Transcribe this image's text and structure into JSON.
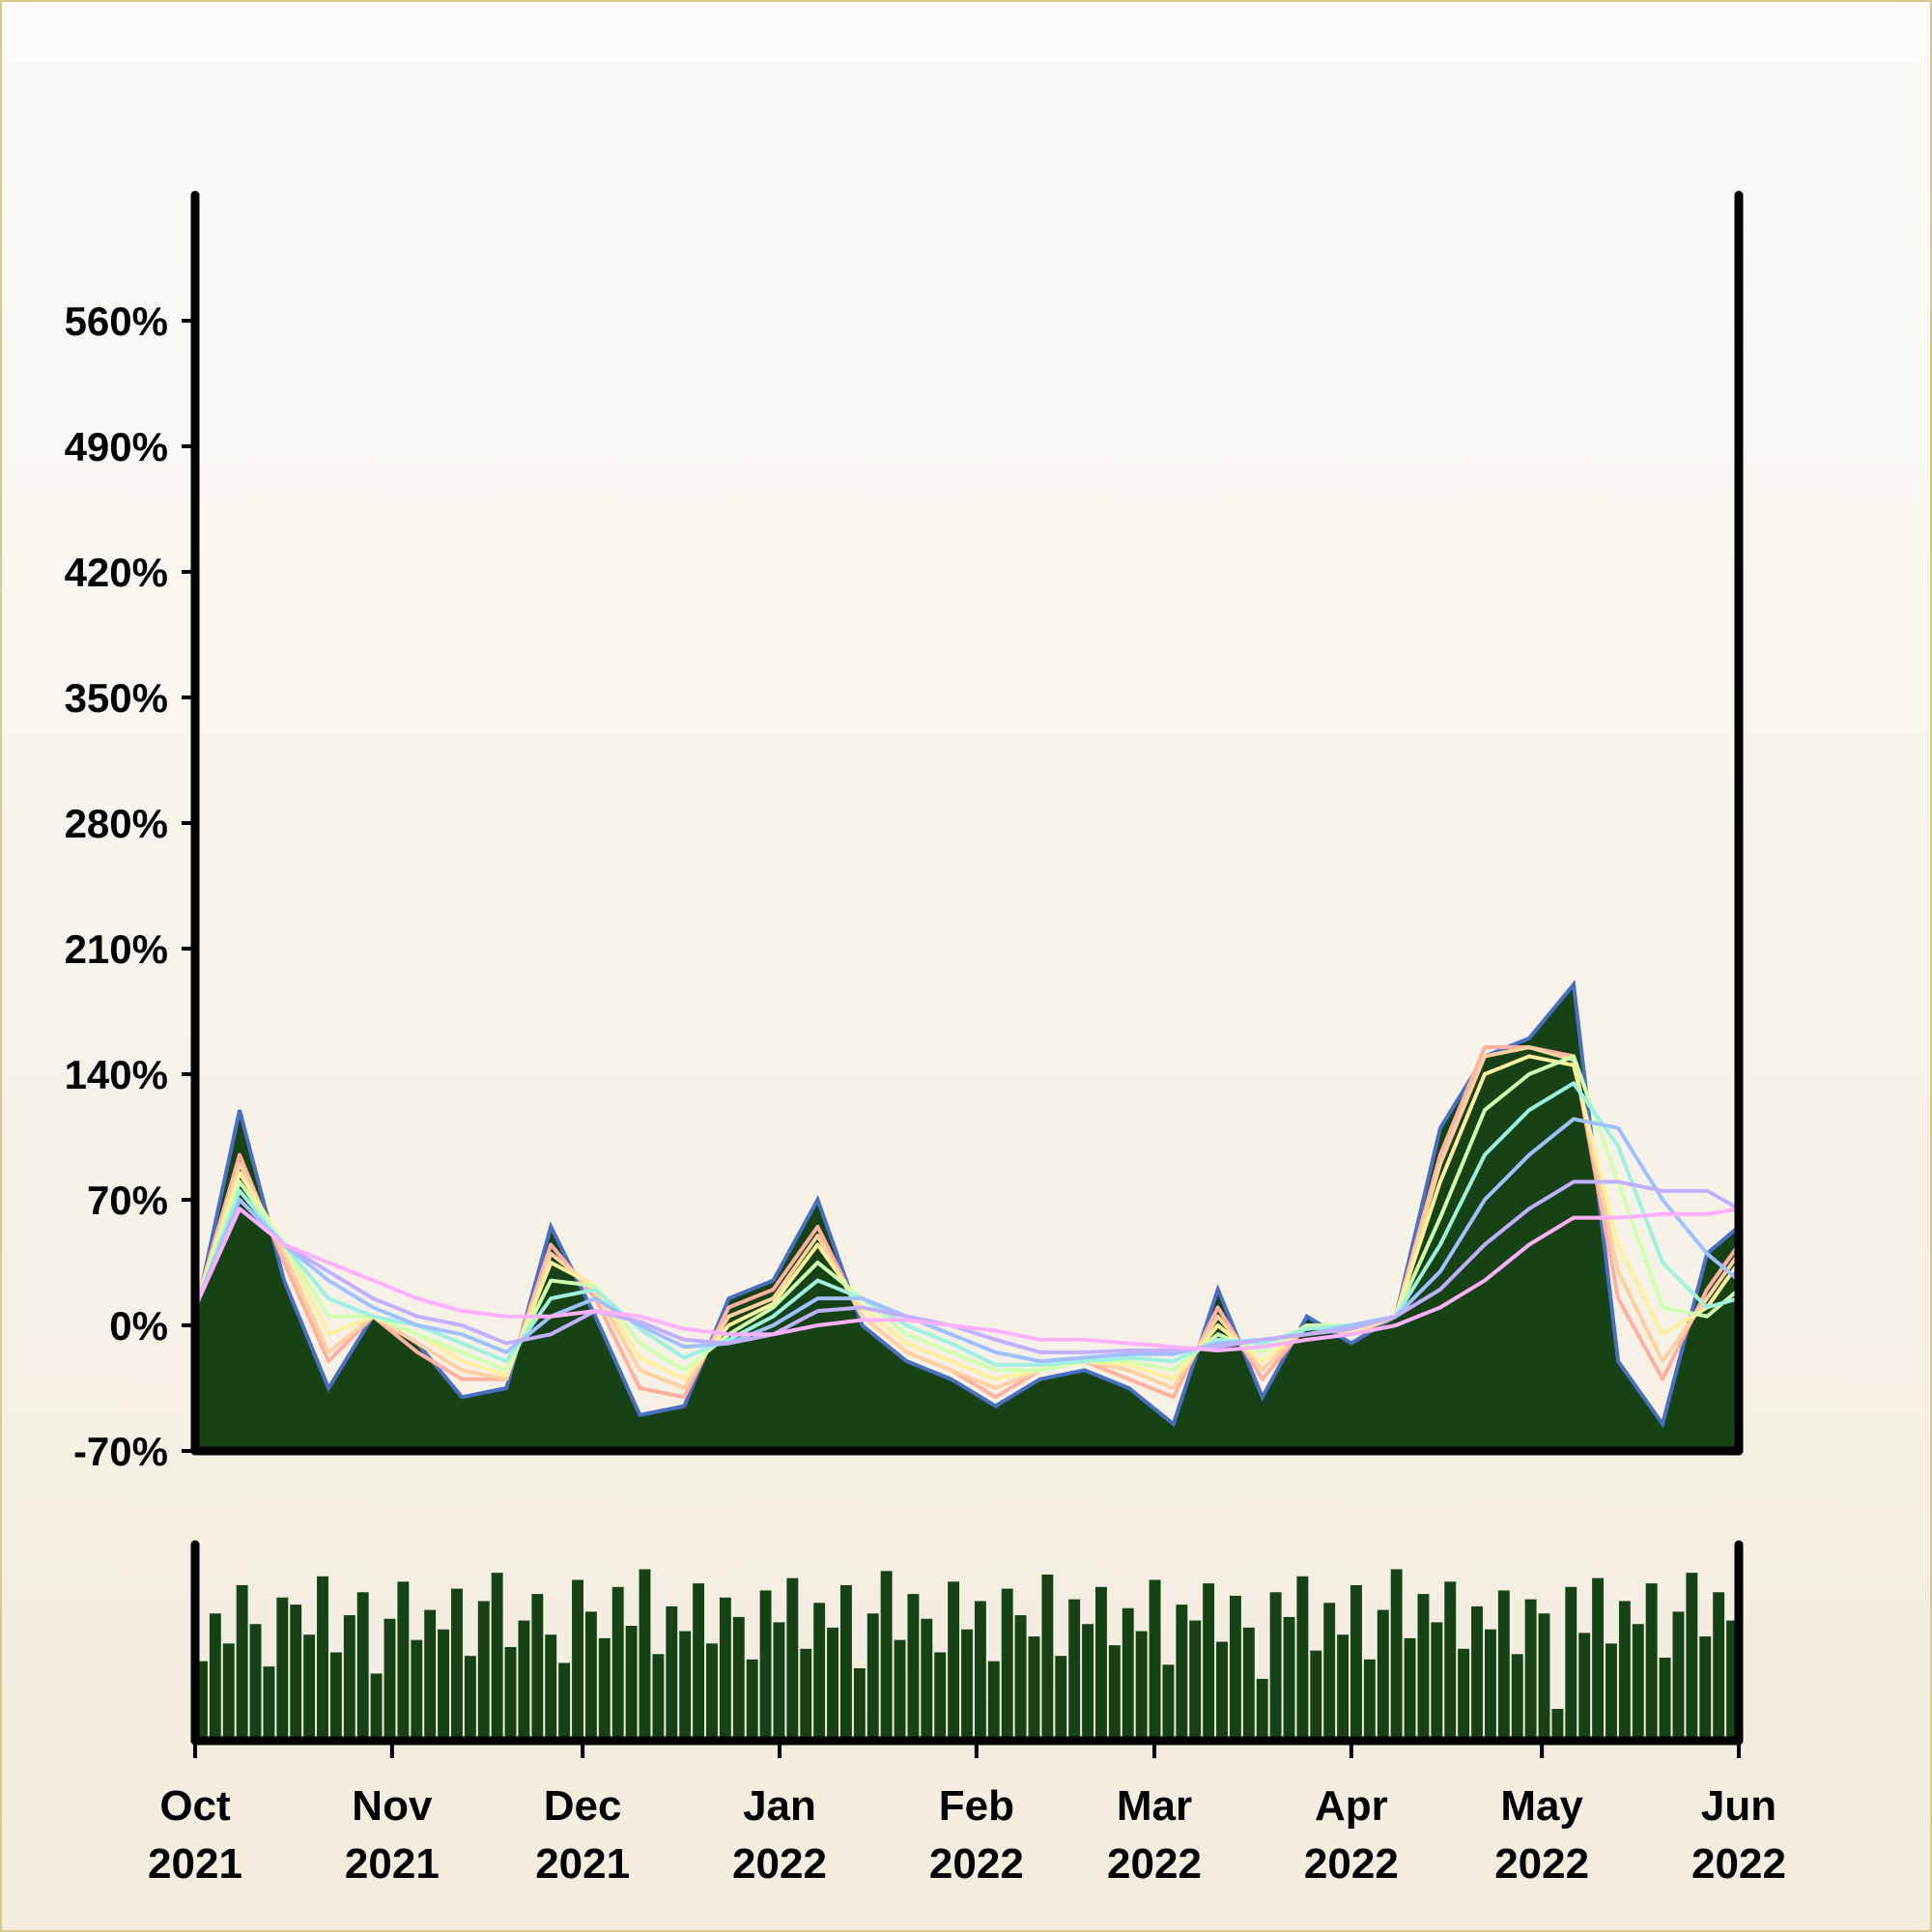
{
  "chart_data": {
    "type": "area",
    "title": "",
    "xlabel": "",
    "ylabel": "",
    "ylim": [
      -70,
      630
    ],
    "y_ticks": [
      -70,
      0,
      70,
      140,
      210,
      280,
      350,
      420,
      490,
      560
    ],
    "y_tick_labels": [
      "-70%",
      "0%",
      "70%",
      "140%",
      "210%",
      "280%",
      "350%",
      "420%",
      "490%",
      "560%"
    ],
    "x_range": [
      "2021-10-01",
      "2022-06-01"
    ],
    "x_ticks": [
      {
        "date": "2021-10-01",
        "month": "Oct",
        "year": "2021"
      },
      {
        "date": "2021-11-01",
        "month": "Nov",
        "year": "2021"
      },
      {
        "date": "2021-12-01",
        "month": "Dec",
        "year": "2021"
      },
      {
        "date": "2022-01-01",
        "month": "Jan",
        "year": "2022"
      },
      {
        "date": "2022-02-01",
        "month": "Feb",
        "year": "2022"
      },
      {
        "date": "2022-03-01",
        "month": "Mar",
        "year": "2022"
      },
      {
        "date": "2022-04-01",
        "month": "Apr",
        "year": "2022"
      },
      {
        "date": "2022-05-01",
        "month": "May",
        "year": "2022"
      },
      {
        "date": "2022-06-01",
        "month": "Jun",
        "year": "2022"
      }
    ],
    "grid": false,
    "legend": "none",
    "colors": {
      "area_fill": "#164216",
      "area_edge": "#4a6fc0",
      "volume_bars": "#164216",
      "axes": "#000000",
      "moving_averages": [
        "#ffb0a0",
        "#ffd0a0",
        "#fff0a0",
        "#d0ffb0",
        "#a0f0e0",
        "#a0c0ff",
        "#c0b0ff",
        "#ffb0ff"
      ]
    },
    "main_series": {
      "x": [
        "2021-10-01",
        "2021-10-08",
        "2021-10-15",
        "2021-10-22",
        "2021-10-29",
        "2021-11-05",
        "2021-11-12",
        "2021-11-19",
        "2021-11-26",
        "2021-12-03",
        "2021-12-10",
        "2021-12-17",
        "2021-12-24",
        "2021-12-31",
        "2022-01-07",
        "2022-01-14",
        "2022-01-21",
        "2022-01-28",
        "2022-02-04",
        "2022-02-11",
        "2022-02-18",
        "2022-02-25",
        "2022-03-04",
        "2022-03-11",
        "2022-03-18",
        "2022-03-25",
        "2022-04-01",
        "2022-04-08",
        "2022-04-15",
        "2022-04-22",
        "2022-04-29",
        "2022-05-06",
        "2022-05-13",
        "2022-05-20",
        "2022-05-27",
        "2022-06-01"
      ],
      "y": [
        5,
        120,
        25,
        -35,
        5,
        -10,
        -40,
        -35,
        55,
        5,
        -50,
        -45,
        15,
        25,
        70,
        0,
        -20,
        -30,
        -45,
        -30,
        -25,
        -35,
        -55,
        20,
        -40,
        5,
        -10,
        5,
        110,
        150,
        160,
        190,
        -20,
        -55,
        40,
        55
      ]
    },
    "moving_averages": [
      {
        "values": [
          10,
          95,
          35,
          -20,
          5,
          -15,
          -30,
          -30,
          45,
          15,
          -35,
          -40,
          10,
          20,
          55,
          5,
          -15,
          -25,
          -40,
          -25,
          -20,
          -30,
          -40,
          10,
          -30,
          0,
          -5,
          5,
          95,
          155,
          155,
          150,
          15,
          -30,
          20,
          45
        ]
      },
      {
        "values": [
          10,
          90,
          40,
          -15,
          5,
          -10,
          -25,
          -30,
          40,
          20,
          -25,
          -35,
          5,
          15,
          50,
          5,
          -15,
          -25,
          -35,
          -25,
          -20,
          -25,
          -35,
          5,
          -25,
          0,
          -5,
          5,
          90,
          150,
          155,
          148,
          30,
          -20,
          15,
          40
        ]
      },
      {
        "values": [
          10,
          85,
          45,
          -5,
          5,
          -5,
          -20,
          -28,
          35,
          22,
          -18,
          -30,
          0,
          12,
          45,
          10,
          -10,
          -20,
          -30,
          -25,
          -20,
          -22,
          -30,
          0,
          -20,
          0,
          -3,
          5,
          80,
          140,
          150,
          145,
          45,
          -5,
          10,
          35
        ]
      },
      {
        "values": [
          10,
          80,
          45,
          5,
          5,
          -5,
          -15,
          -25,
          25,
          22,
          -10,
          -25,
          -5,
          10,
          35,
          15,
          -5,
          -15,
          -25,
          -25,
          -20,
          -20,
          -25,
          -5,
          -15,
          0,
          0,
          5,
          60,
          120,
          140,
          150,
          80,
          10,
          5,
          20
        ]
      },
      {
        "values": [
          10,
          75,
          45,
          15,
          5,
          0,
          -10,
          -20,
          15,
          20,
          -2,
          -18,
          -8,
          5,
          25,
          15,
          0,
          -10,
          -22,
          -22,
          -20,
          -18,
          -20,
          -8,
          -10,
          -2,
          0,
          5,
          45,
          95,
          120,
          135,
          100,
          35,
          10,
          15
        ]
      },
      {
        "values": [
          10,
          70,
          45,
          25,
          10,
          0,
          -5,
          -15,
          5,
          15,
          0,
          -12,
          -10,
          0,
          15,
          15,
          5,
          -5,
          -15,
          -20,
          -18,
          -16,
          -16,
          -10,
          -8,
          -5,
          0,
          5,
          30,
          70,
          95,
          115,
          110,
          70,
          40,
          25
        ]
      },
      {
        "values": [
          10,
          65,
          45,
          30,
          15,
          5,
          0,
          -10,
          -5,
          8,
          2,
          -8,
          -10,
          -5,
          8,
          10,
          5,
          0,
          -8,
          -15,
          -15,
          -14,
          -14,
          -12,
          -8,
          -5,
          -2,
          5,
          20,
          45,
          65,
          80,
          80,
          75,
          75,
          65
        ]
      },
      {
        "values": [
          10,
          65,
          45,
          35,
          25,
          15,
          8,
          5,
          5,
          8,
          5,
          -2,
          -5,
          -5,
          0,
          3,
          3,
          0,
          -3,
          -8,
          -8,
          -10,
          -12,
          -14,
          -12,
          -8,
          -5,
          0,
          10,
          25,
          45,
          60,
          60,
          62,
          62,
          65
        ]
      }
    ],
    "volume": {
      "values": [
        0.45,
        0.72,
        0.55,
        0.88,
        0.66,
        0.42,
        0.81,
        0.77,
        0.6,
        0.93,
        0.5,
        0.71,
        0.84,
        0.38,
        0.69,
        0.9,
        0.57,
        0.74,
        0.63,
        0.86,
        0.48,
        0.79,
        0.95,
        0.53,
        0.68,
        0.83,
        0.6,
        0.44,
        0.91,
        0.73,
        0.58,
        0.87,
        0.65,
        0.97,
        0.49,
        0.76,
        0.62,
        0.89,
        0.55,
        0.81,
        0.7,
        0.46,
        0.85,
        0.67,
        0.92,
        0.52,
        0.78,
        0.64,
        0.88,
        0.41,
        0.72,
        0.96,
        0.57,
        0.83,
        0.69,
        0.5,
        0.9,
        0.63,
        0.79,
        0.45,
        0.86,
        0.71,
        0.59,
        0.94,
        0.48,
        0.8,
        0.66,
        0.87,
        0.54,
        0.75,
        0.62,
        0.91,
        0.43,
        0.77,
        0.68,
        0.89,
        0.56,
        0.82,
        0.64,
        0.35,
        0.84,
        0.7,
        0.93,
        0.51,
        0.78,
        0.6,
        0.88,
        0.46,
        0.74,
        0.97,
        0.58,
        0.83,
        0.67,
        0.9,
        0.52,
        0.76,
        0.63,
        0.85,
        0.49,
        0.8,
        0.72,
        0.18,
        0.87,
        0.61,
        0.92,
        0.55,
        0.79,
        0.66,
        0.89,
        0.47,
        0.73,
        0.95,
        0.59,
        0.84,
        0.68
      ]
    }
  }
}
